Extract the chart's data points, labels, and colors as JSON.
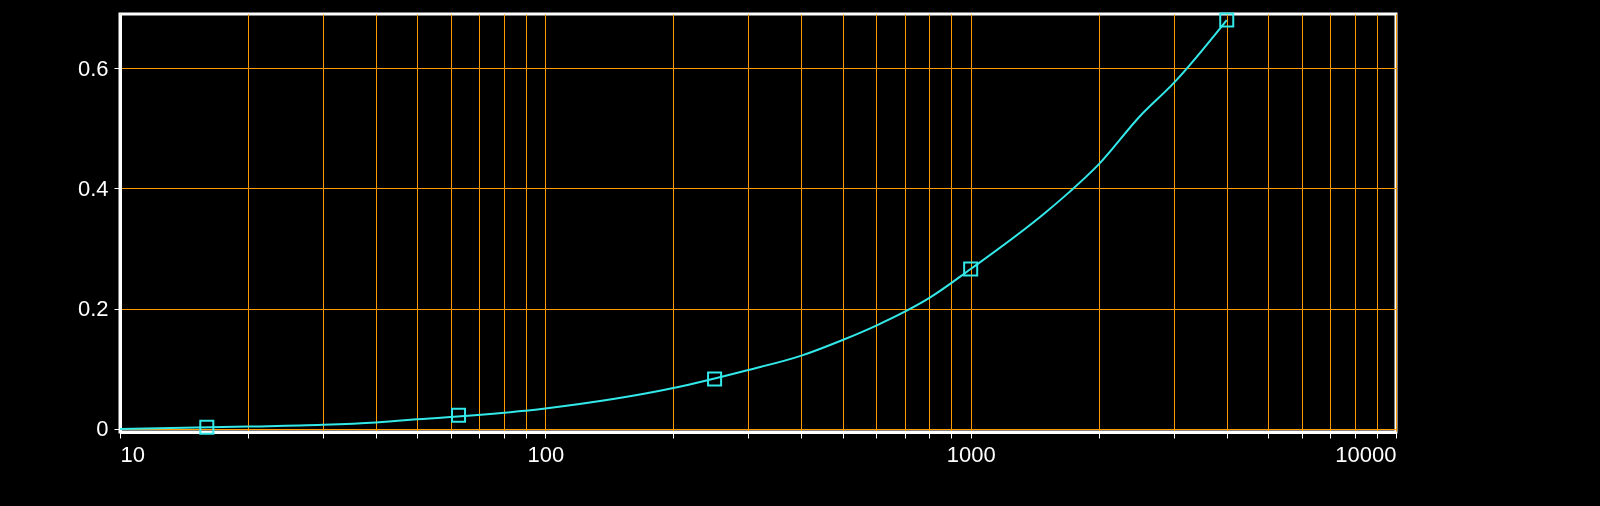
{
  "chart_data": {
    "type": "line",
    "log": "x",
    "grid": true,
    "xlim": [
      10,
      10000
    ],
    "ylim": [
      -0.005,
      0.69
    ],
    "xticks": [
      10,
      {
        "value": 20,
        "label": null
      },
      {
        "value": 30,
        "label": null
      },
      {
        "value": 40,
        "label": null
      },
      {
        "value": 50,
        "label": null
      },
      {
        "value": 60,
        "label": null
      },
      {
        "value": 70,
        "label": null
      },
      {
        "value": 80,
        "label": null
      },
      {
        "value": 90,
        "label": null
      },
      100,
      {
        "value": 200,
        "label": null
      },
      {
        "value": 300,
        "label": null
      },
      {
        "value": 400,
        "label": null
      },
      {
        "value": 500,
        "label": null
      },
      {
        "value": 600,
        "label": null
      },
      {
        "value": 700,
        "label": null
      },
      {
        "value": 800,
        "label": null
      },
      {
        "value": 900,
        "label": null
      },
      1000,
      {
        "value": 2000,
        "label": null
      },
      {
        "value": 3000,
        "label": null
      },
      {
        "value": 4000,
        "label": null
      },
      {
        "value": 5000,
        "label": null
      },
      {
        "value": 6000,
        "label": null
      },
      {
        "value": 7000,
        "label": null
      },
      {
        "value": 8000,
        "label": null
      },
      {
        "value": 9000,
        "label": null
      },
      10000
    ],
    "yticks": [
      0,
      0.2,
      0.4,
      0.6
    ],
    "series": [
      {
        "type": "line",
        "marker": "none",
        "color": "#33e8e8",
        "x": [
          10,
          20,
          30,
          40,
          50,
          100,
          200,
          300,
          400,
          500,
          600,
          700,
          800,
          1000,
          1500,
          1700,
          2000,
          2500,
          3000,
          4000
        ],
        "values": [
          0,
          0.004,
          0.007,
          0.011,
          0.016,
          0.034,
          0.068,
          0.098,
          0.122,
          0.148,
          0.172,
          0.195,
          0.218,
          0.266,
          0.36,
          0.393,
          0.44,
          0.52,
          0.575,
          0.68
        ]
      },
      {
        "type": "scatter",
        "marker": "square",
        "color": "#33e8e8",
        "x": [
          16,
          62.5,
          250,
          1000,
          4000
        ],
        "values": [
          0.003,
          0.023,
          0.083,
          0.266,
          0.68
        ]
      }
    ]
  }
}
